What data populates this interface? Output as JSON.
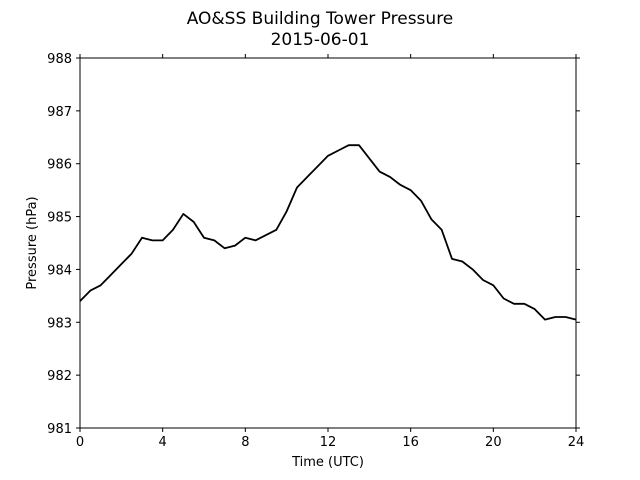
{
  "chart_data": {
    "type": "line",
    "title": "AO&SS Building Tower Pressure",
    "subtitle": "2015-06-01",
    "xlabel": "Time (UTC)",
    "ylabel": "Pressure (hPa)",
    "xlim": [
      0,
      24
    ],
    "ylim": [
      981,
      988
    ],
    "xticks": [
      0,
      4,
      8,
      12,
      16,
      20,
      24
    ],
    "yticks": [
      981,
      982,
      983,
      984,
      985,
      986,
      987,
      988
    ],
    "grid": false,
    "line_color": "#000000",
    "series": [
      {
        "x": [
          0,
          0.5,
          1.0,
          1.5,
          2.0,
          2.5,
          3.0,
          3.5,
          4.0,
          4.5,
          5.0,
          5.5,
          6.0,
          6.5,
          7.0,
          7.5,
          8.0,
          8.5,
          9.0,
          9.5,
          10.0,
          10.5,
          11.0,
          11.5,
          12.0,
          12.5,
          13.0,
          13.5,
          14.0,
          14.5,
          15.0,
          15.5,
          16.0,
          16.5,
          17.0,
          17.5,
          18.0,
          18.5,
          19.0,
          19.5,
          20.0,
          20.5,
          21.0,
          21.5,
          22.0,
          22.5,
          23.0,
          23.5,
          24.0
        ],
        "values": [
          983.4,
          983.6,
          983.7,
          983.9,
          984.1,
          984.3,
          984.6,
          984.55,
          984.55,
          984.75,
          985.05,
          984.9,
          984.6,
          984.55,
          984.4,
          984.45,
          984.6,
          984.55,
          984.65,
          984.75,
          985.1,
          985.55,
          985.75,
          985.95,
          986.15,
          986.25,
          986.35,
          986.35,
          986.1,
          985.85,
          985.75,
          985.6,
          985.5,
          985.3,
          984.95,
          984.75,
          984.2,
          984.15,
          984.0,
          983.8,
          983.7,
          983.45,
          983.35,
          983.35,
          983.25,
          983.05,
          983.1,
          983.1,
          983.05
        ]
      }
    ]
  }
}
